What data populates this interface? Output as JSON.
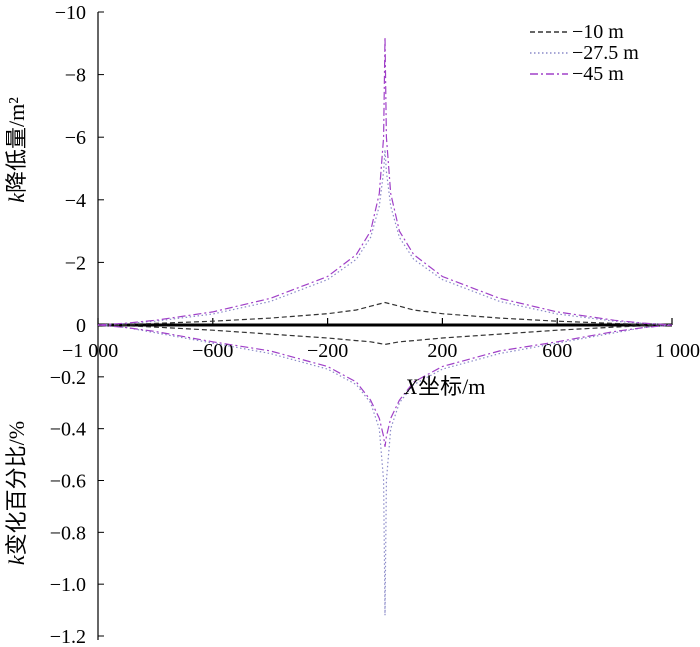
{
  "chart_data": {
    "type": "line",
    "x_axis": {
      "label_italic": "X",
      "label_rest": "坐标/m",
      "range": [
        -1000,
        1000
      ],
      "ticks": [
        -1000,
        -600,
        -200,
        200,
        600,
        1000
      ],
      "tick_labels": [
        "−1 000",
        "−600",
        "−200",
        "200",
        "600",
        "1 000"
      ]
    },
    "upper_panel": {
      "ylabel_italic": "k",
      "ylabel_rest": "降低量/m²",
      "ylim": [
        0,
        -10
      ],
      "ticks": [
        0,
        -2,
        -4,
        -6,
        -8,
        -10
      ],
      "tick_labels": [
        "0",
        "−2",
        "−4",
        "−6",
        "−8",
        "−10"
      ]
    },
    "lower_panel": {
      "ylabel_italic": "k",
      "ylabel_rest": "变化百分比/%",
      "ylim": [
        0,
        -1.2
      ],
      "ticks": [
        -0.2,
        -0.4,
        -0.6,
        -0.8,
        -1.0,
        -1.2
      ],
      "tick_labels": [
        "−0.2",
        "−0.4",
        "−0.6",
        "−0.8",
        "−1.0",
        "−1.2"
      ]
    },
    "legend": {
      "position": "top-right",
      "entries": [
        "−10 m",
        "−27.5 m",
        "−45 m"
      ]
    },
    "series": [
      {
        "name": "−10 m",
        "color": "#333333",
        "dash": "dashed",
        "upper": {
          "x": [
            -1000,
            -900,
            -800,
            -600,
            -400,
            -200,
            -100,
            -50,
            0,
            50,
            100,
            200,
            400,
            600,
            800,
            900,
            1000
          ],
          "y": [
            0,
            -0.02,
            -0.05,
            -0.12,
            -0.22,
            -0.36,
            -0.48,
            -0.6,
            -0.72,
            -0.6,
            -0.48,
            -0.36,
            -0.22,
            -0.12,
            -0.05,
            -0.02,
            0
          ]
        },
        "lower": {
          "x": [
            -1000,
            -900,
            -800,
            -600,
            -400,
            -200,
            -100,
            -50,
            0,
            50,
            100,
            200,
            400,
            600,
            800,
            900,
            1000
          ],
          "y": [
            0,
            -0.003,
            -0.008,
            -0.02,
            -0.035,
            -0.05,
            -0.06,
            -0.065,
            -0.075,
            -0.065,
            -0.06,
            -0.05,
            -0.035,
            -0.02,
            -0.008,
            -0.003,
            0
          ]
        }
      },
      {
        "name": "−27.5 m",
        "color": "#8a8ac8",
        "dash": "dotted",
        "upper": {
          "x": [
            -1000,
            -900,
            -800,
            -600,
            -400,
            -200,
            -100,
            -50,
            -20,
            -5,
            0,
            5,
            20,
            50,
            100,
            200,
            400,
            600,
            800,
            900,
            1000
          ],
          "y": [
            0,
            -0.05,
            -0.12,
            -0.35,
            -0.75,
            -1.45,
            -2.1,
            -2.8,
            -3.8,
            -4.9,
            -5.6,
            -4.9,
            -3.8,
            -2.8,
            -2.1,
            -1.45,
            -0.75,
            -0.35,
            -0.12,
            -0.05,
            0
          ]
        },
        "lower": {
          "x": [
            -1000,
            -900,
            -800,
            -600,
            -400,
            -200,
            -100,
            -50,
            -20,
            -5,
            0,
            5,
            20,
            50,
            100,
            200,
            400,
            600,
            800,
            900,
            1000
          ],
          "y": [
            0,
            -0.01,
            -0.03,
            -0.07,
            -0.11,
            -0.17,
            -0.23,
            -0.3,
            -0.4,
            -0.6,
            -1.12,
            -0.6,
            -0.4,
            -0.3,
            -0.23,
            -0.17,
            -0.11,
            -0.07,
            -0.03,
            -0.01,
            0
          ]
        }
      },
      {
        "name": "−45 m",
        "color": "#a040c8",
        "dash": "dashdot",
        "upper": {
          "x": [
            -1000,
            -900,
            -800,
            -600,
            -400,
            -200,
            -100,
            -50,
            -20,
            -5,
            0,
            5,
            20,
            50,
            100,
            200,
            400,
            600,
            800,
            900,
            1000
          ],
          "y": [
            0,
            -0.06,
            -0.15,
            -0.42,
            -0.85,
            -1.55,
            -2.25,
            -3.0,
            -4.2,
            -6.0,
            -9.2,
            -6.0,
            -4.2,
            -3.0,
            -2.25,
            -1.55,
            -0.85,
            -0.42,
            -0.15,
            -0.06,
            0
          ]
        },
        "lower": {
          "x": [
            -1000,
            -900,
            -800,
            -600,
            -400,
            -200,
            -100,
            -50,
            -20,
            -5,
            0,
            5,
            20,
            50,
            100,
            200,
            400,
            600,
            800,
            900,
            1000
          ],
          "y": [
            0,
            -0.01,
            -0.025,
            -0.065,
            -0.1,
            -0.16,
            -0.22,
            -0.29,
            -0.36,
            -0.43,
            -0.47,
            -0.43,
            -0.36,
            -0.29,
            -0.22,
            -0.16,
            -0.1,
            -0.065,
            -0.025,
            -0.01,
            0
          ]
        }
      }
    ]
  }
}
